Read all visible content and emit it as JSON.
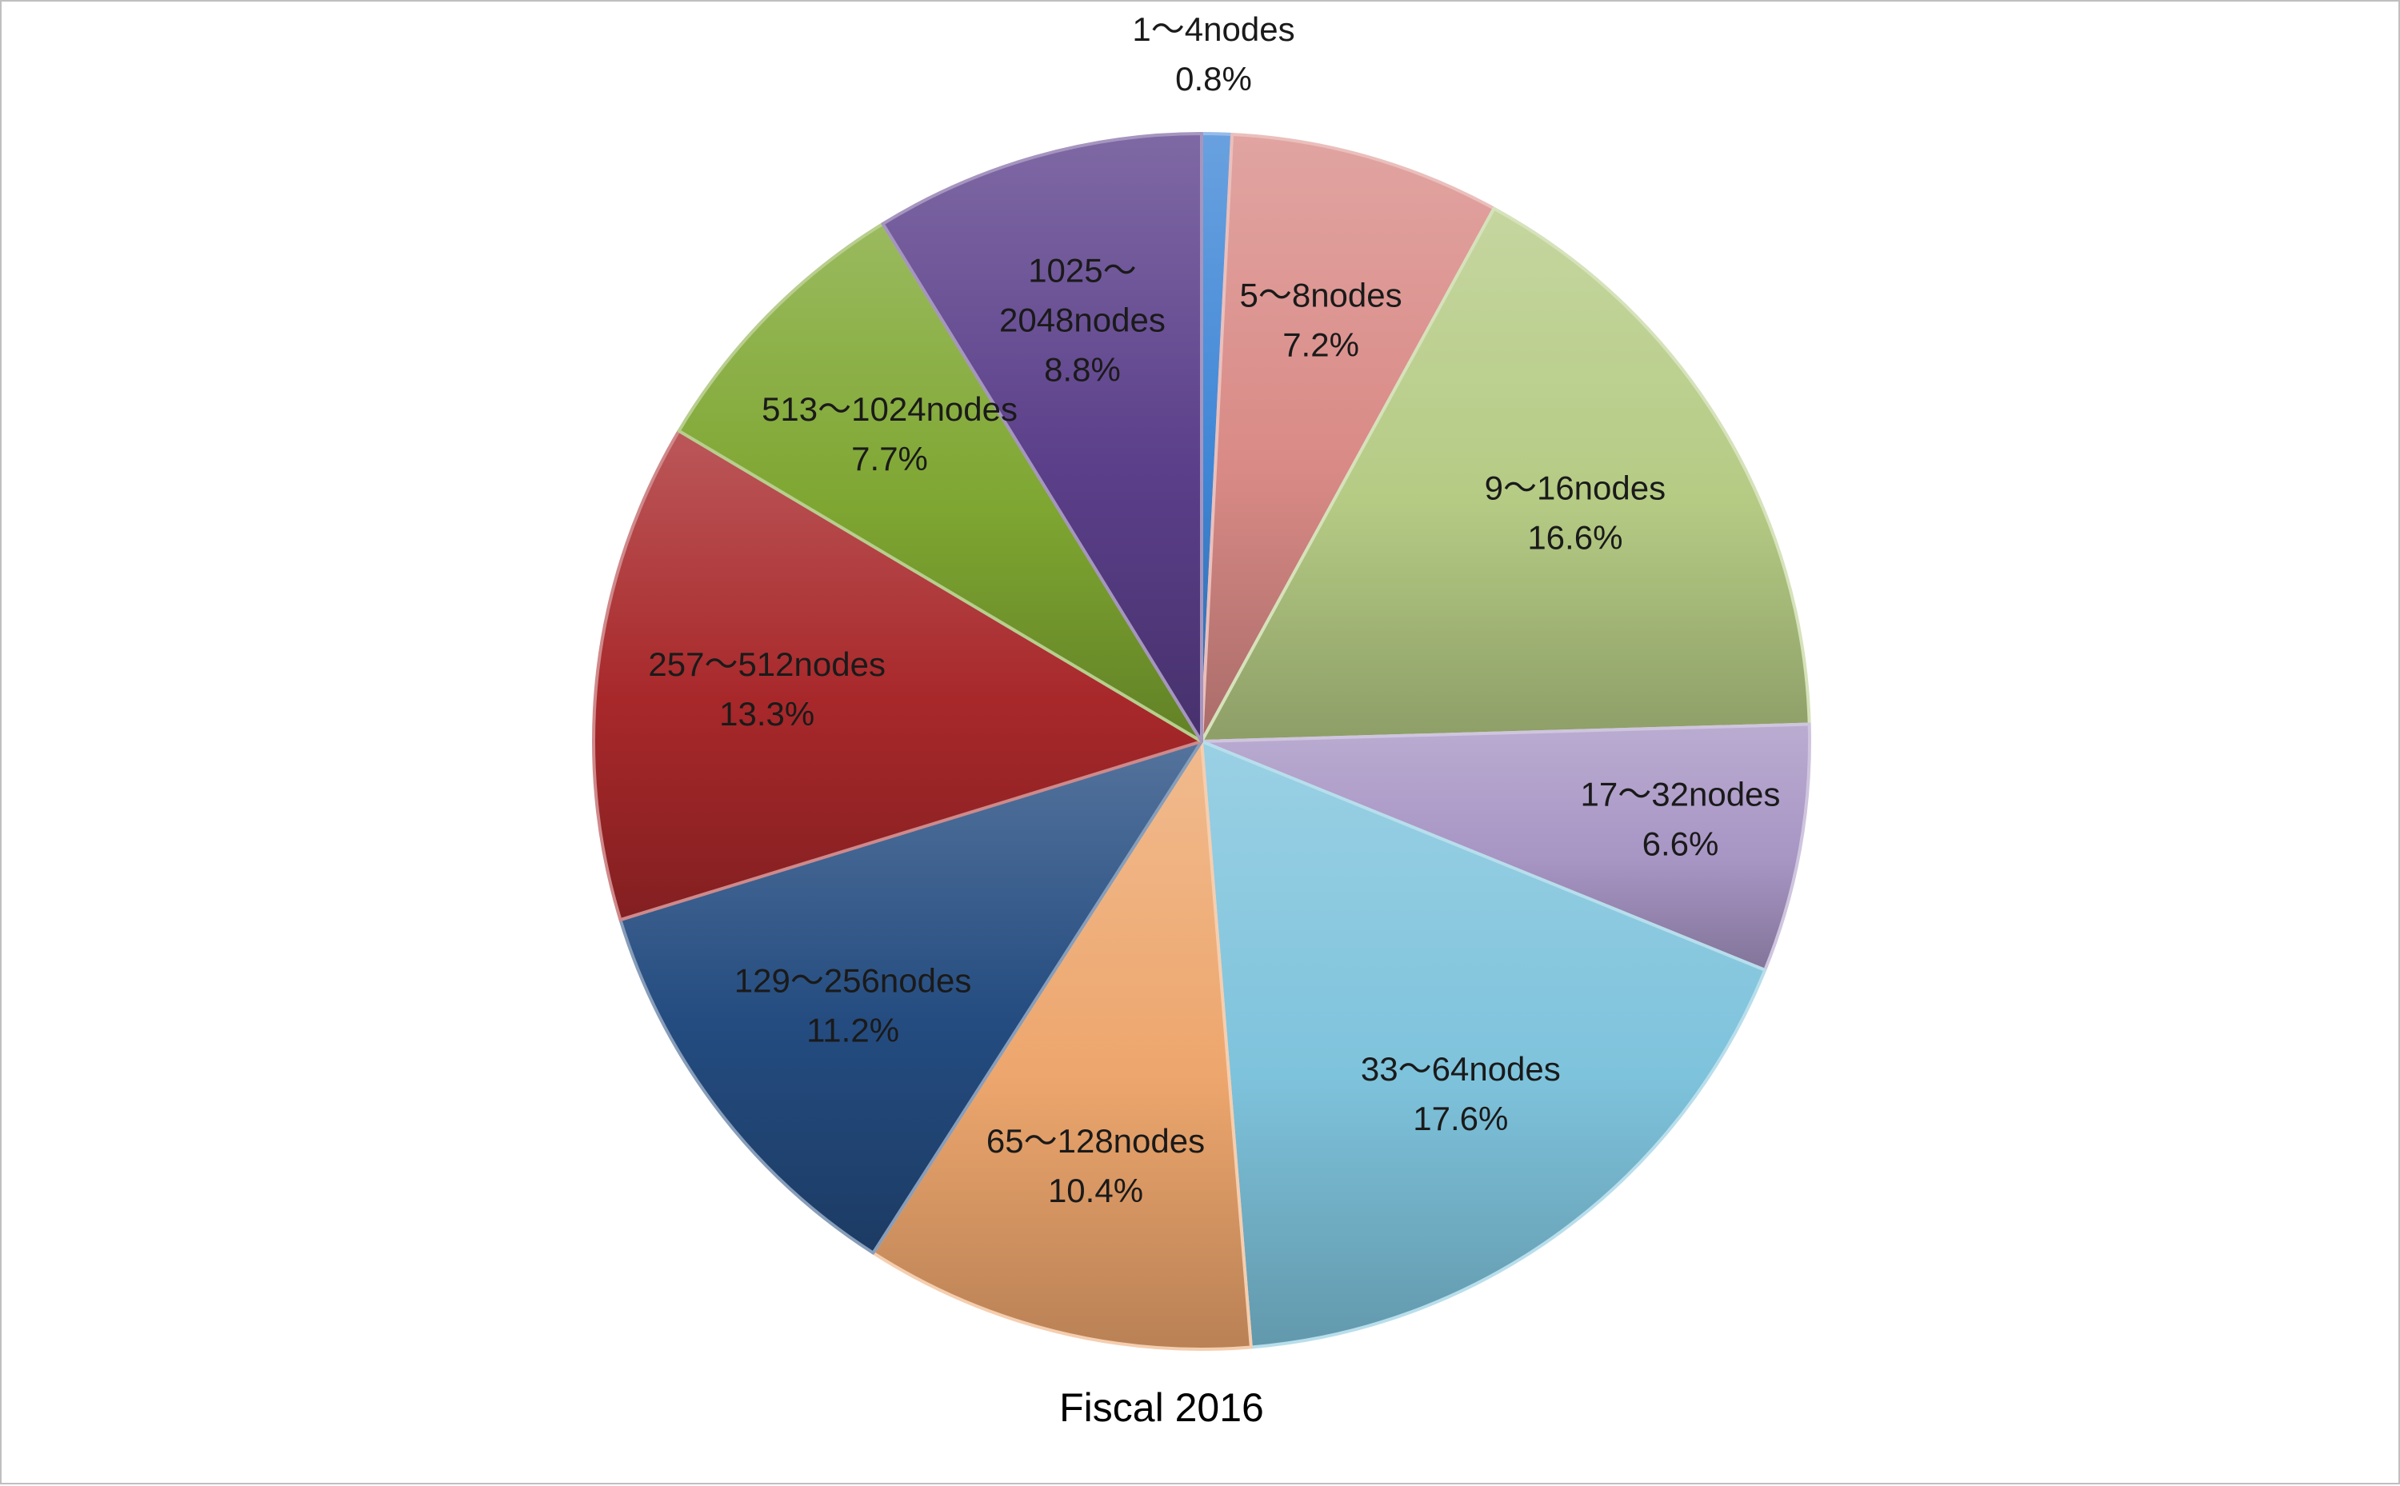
{
  "chart_data": {
    "type": "pie",
    "caption": "Fiscal 2016",
    "start_angle_deg": 0,
    "direction": "clockwise",
    "slices": [
      {
        "label": "1～4nodes",
        "label_lines": [
          "1～4nodes"
        ],
        "percent_text": "0.8%",
        "value": 0.8,
        "color": "#3f86d6"
      },
      {
        "label": "5～8nodes",
        "label_lines": [
          "5～8nodes"
        ],
        "percent_text": "7.2%",
        "value": 7.2,
        "color": "#d98a86"
      },
      {
        "label": "9～16nodes",
        "label_lines": [
          "9～16nodes"
        ],
        "percent_text": "16.6%",
        "value": 16.6,
        "color": "#b5cb84"
      },
      {
        "label": "17～32nodes",
        "label_lines": [
          "17～32nodes"
        ],
        "percent_text": "6.6%",
        "value": 6.6,
        "color": "#a795c4"
      },
      {
        "label": "33～64nodes",
        "label_lines": [
          "33～64nodes"
        ],
        "percent_text": "17.6%",
        "value": 17.6,
        "color": "#7ec3dc"
      },
      {
        "label": "65～128nodes",
        "label_lines": [
          "65～128nodes"
        ],
        "percent_text": "10.4%",
        "value": 10.4,
        "color": "#eda66d"
      },
      {
        "label": "129～256nodes",
        "label_lines": [
          "129～256nodes"
        ],
        "percent_text": "11.2%",
        "value": 11.2,
        "color": "#244c80"
      },
      {
        "label": "257～512nodes",
        "label_lines": [
          "257～512nodes"
        ],
        "percent_text": "13.3%",
        "value": 13.3,
        "color": "#a8282a"
      },
      {
        "label": "513～1024nodes",
        "label_lines": [
          "513～1024nodes"
        ],
        "percent_text": "7.7%",
        "value": 7.7,
        "color": "#7ea631"
      },
      {
        "label": "1025～2048nodes",
        "label_lines": [
          "1025～",
          "2048nodes"
        ],
        "percent_text": "8.8%",
        "value": 8.8,
        "color": "#5b3f8a"
      }
    ]
  }
}
